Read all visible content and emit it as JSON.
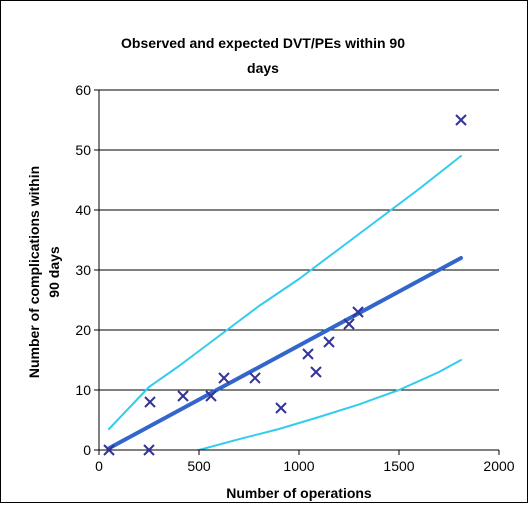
{
  "chart_data": {
    "type": "scatter",
    "title_lines": [
      "Observed and expected DVT/PEs within 90",
      "days"
    ],
    "xlabel": "Number of operations",
    "ylabel_lines": [
      "Number of complications within",
      "90 days"
    ],
    "xlim": [
      0,
      2000
    ],
    "ylim": [
      0,
      60
    ],
    "x_ticks": [
      "0",
      "500",
      "1000",
      "1500",
      "2000"
    ],
    "y_ticks": [
      "0",
      "10",
      "20",
      "30",
      "40",
      "50",
      "60"
    ],
    "grid": "horizontal",
    "series": [
      {
        "kind": "points",
        "marker": "x",
        "color": "#333399",
        "points": [
          {
            "x": 50,
            "y": 0
          },
          {
            "x": 250,
            "y": 0
          },
          {
            "x": 255,
            "y": 8
          },
          {
            "x": 420,
            "y": 9
          },
          {
            "x": 560,
            "y": 9
          },
          {
            "x": 625,
            "y": 12
          },
          {
            "x": 780,
            "y": 12
          },
          {
            "x": 910,
            "y": 7
          },
          {
            "x": 1045,
            "y": 16
          },
          {
            "x": 1085,
            "y": 13
          },
          {
            "x": 1150,
            "y": 18
          },
          {
            "x": 1250,
            "y": 21
          },
          {
            "x": 1295,
            "y": 23
          },
          {
            "x": 1810,
            "y": 55
          }
        ]
      },
      {
        "kind": "line",
        "color": "#3366CC",
        "width": "thick",
        "points": [
          {
            "x": 50,
            "y": 0.3
          },
          {
            "x": 1810,
            "y": 32
          }
        ]
      },
      {
        "kind": "line",
        "color": "#33CCEE",
        "width": "thin",
        "points": [
          {
            "x": 50,
            "y": 3.5
          },
          {
            "x": 150,
            "y": 7
          },
          {
            "x": 250,
            "y": 10.5
          },
          {
            "x": 400,
            "y": 14
          },
          {
            "x": 600,
            "y": 19
          },
          {
            "x": 800,
            "y": 24
          },
          {
            "x": 1000,
            "y": 28.5
          },
          {
            "x": 1200,
            "y": 33.5
          },
          {
            "x": 1400,
            "y": 38.5
          },
          {
            "x": 1600,
            "y": 43.5
          },
          {
            "x": 1810,
            "y": 49
          }
        ]
      },
      {
        "kind": "line",
        "color": "#33CCEE",
        "width": "thin",
        "points": [
          {
            "x": 300,
            "y": -1.2
          },
          {
            "x": 400,
            "y": -0.7
          },
          {
            "x": 500,
            "y": 0
          },
          {
            "x": 700,
            "y": 1.8
          },
          {
            "x": 900,
            "y": 3.5
          },
          {
            "x": 1100,
            "y": 5.5
          },
          {
            "x": 1300,
            "y": 7.6
          },
          {
            "x": 1500,
            "y": 10
          },
          {
            "x": 1700,
            "y": 13
          },
          {
            "x": 1810,
            "y": 15
          }
        ]
      }
    ]
  }
}
